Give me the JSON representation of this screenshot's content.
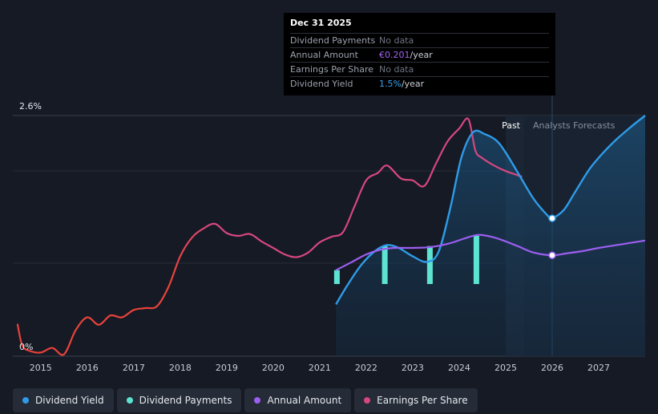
{
  "tooltip": {
    "date": "Dec 31 2025",
    "rows": [
      {
        "label": "Dividend Payments",
        "value": "No data",
        "unit": ""
      },
      {
        "label": "Annual Amount",
        "value": "€0.201",
        "unit": "/year"
      },
      {
        "label": "Earnings Per Share",
        "value": "No data",
        "unit": ""
      },
      {
        "label": "Dividend Yield",
        "value": "1.5%",
        "unit": "/year"
      }
    ]
  },
  "region_labels": {
    "past": "Past",
    "forecast": "Analysts Forecasts"
  },
  "legend": [
    {
      "label": "Dividend Yield",
      "color": "#2f9be8"
    },
    {
      "label": "Dividend Payments",
      "color": "#5de3d2"
    },
    {
      "label": "Annual Amount",
      "color": "#9c5ef0"
    },
    {
      "label": "Earnings Per Share",
      "color": "#d6477e"
    }
  ],
  "chart_data": {
    "type": "line",
    "title": "",
    "xlabel": "",
    "ylabel": "",
    "ylim_labels": [
      "0%",
      "2.6%"
    ],
    "ylim": [
      0,
      2.6
    ],
    "xlim": [
      2014.4,
      2028.0
    ],
    "x_ticks": [
      2015,
      2016,
      2017,
      2018,
      2019,
      2020,
      2021,
      2022,
      2023,
      2024,
      2025,
      2026,
      2027
    ],
    "past_end": 2025.0,
    "forecast_start": 2025.4,
    "cursor_x": 2026.0,
    "series": [
      {
        "name": "Earnings Per Share",
        "color": "#d6477e",
        "color_early": "#e8423a",
        "x": [
          2014.5,
          2014.6,
          2014.75,
          2015.0,
          2015.25,
          2015.5,
          2015.75,
          2016.0,
          2016.25,
          2016.5,
          2016.75,
          2017.0,
          2017.25,
          2017.5,
          2017.75,
          2018.0,
          2018.25,
          2018.5,
          2018.75,
          2019.0,
          2019.25,
          2019.5,
          2019.75,
          2020.0,
          2020.25,
          2020.5,
          2020.75,
          2021.0,
          2021.25,
          2021.5,
          2021.75,
          2022.0,
          2022.25,
          2022.45,
          2022.75,
          2023.0,
          2023.25,
          2023.5,
          2023.75,
          2024.0,
          2024.2,
          2024.35,
          2024.5,
          2024.75,
          2025.0,
          2025.35
        ],
        "values": [
          0.35,
          0.12,
          0.06,
          0.04,
          0.09,
          0.02,
          0.28,
          0.42,
          0.34,
          0.44,
          0.42,
          0.5,
          0.52,
          0.54,
          0.75,
          1.08,
          1.28,
          1.38,
          1.43,
          1.33,
          1.3,
          1.32,
          1.24,
          1.17,
          1.1,
          1.07,
          1.12,
          1.23,
          1.29,
          1.34,
          1.62,
          1.9,
          1.98,
          2.06,
          1.92,
          1.9,
          1.84,
          2.08,
          2.32,
          2.46,
          2.56,
          2.22,
          2.14,
          2.06,
          2.0,
          1.94
        ]
      },
      {
        "name": "Dividend Yield",
        "color": "#2f9be8",
        "x": [
          2021.35,
          2021.6,
          2021.9,
          2022.2,
          2022.45,
          2022.7,
          2023.0,
          2023.3,
          2023.55,
          2023.8,
          2024.05,
          2024.3,
          2024.55,
          2024.8,
          2025.0,
          2025.3,
          2025.6,
          2025.9,
          2026.0,
          2026.25,
          2026.5,
          2026.8,
          2027.1,
          2027.4,
          2027.7,
          2028.0
        ],
        "values": [
          0.56,
          0.77,
          0.99,
          1.14,
          1.2,
          1.17,
          1.08,
          1.02,
          1.12,
          1.58,
          2.15,
          2.42,
          2.4,
          2.33,
          2.2,
          1.95,
          1.7,
          1.52,
          1.49,
          1.58,
          1.78,
          2.02,
          2.2,
          2.35,
          2.48,
          2.6
        ]
      },
      {
        "name": "Annual Amount",
        "color": "#9c5ef0",
        "x": [
          2021.35,
          2021.7,
          2022.0,
          2022.3,
          2022.6,
          2023.0,
          2023.4,
          2023.8,
          2024.1,
          2024.4,
          2024.7,
          2025.0,
          2025.3,
          2025.6,
          2026.0,
          2026.3,
          2026.7,
          2027.0,
          2027.5,
          2028.0
        ],
        "values": [
          0.93,
          1.02,
          1.1,
          1.15,
          1.17,
          1.17,
          1.18,
          1.22,
          1.27,
          1.31,
          1.29,
          1.24,
          1.18,
          1.12,
          1.09,
          1.11,
          1.14,
          1.17,
          1.21,
          1.25
        ]
      },
      {
        "name": "Dividend Payments",
        "color": "#5de3d2",
        "type": "bar",
        "x": [
          2021.37,
          2022.4,
          2023.37,
          2024.37
        ],
        "values": [
          0.15,
          0.41,
          0.41,
          0.52
        ]
      }
    ],
    "markers": [
      {
        "series": "Dividend Yield",
        "x": 2026.0,
        "value": 1.49
      },
      {
        "series": "Annual Amount",
        "x": 2026.0,
        "value": 1.09
      }
    ]
  }
}
